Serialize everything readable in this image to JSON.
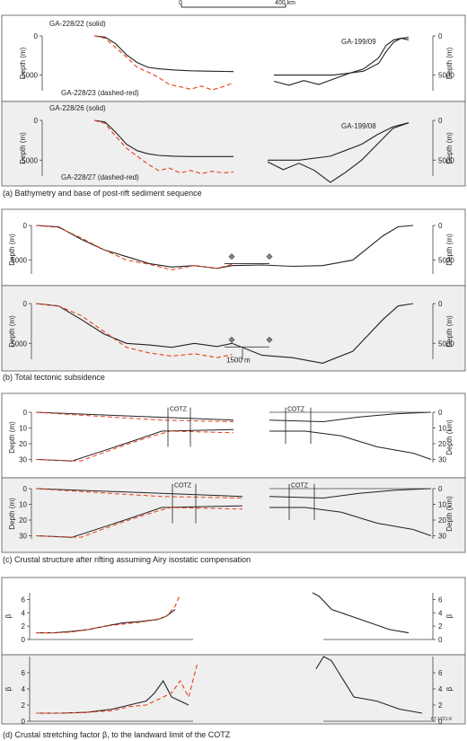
{
  "scale_bar": {
    "start": "0",
    "end": "400 km"
  },
  "colors": {
    "solid": "#222222",
    "dashed": "#e8401c",
    "panel_shade": "#efefef"
  },
  "captions": {
    "a": "(a) Bathymetry and base of post-rift sediment sequence",
    "b": "(b) Total tectonic subsidence",
    "c": "(c) Crustal structure after rifting assuming Airy isostatic compensation",
    "d": "(d) Crustal stretching factor β, to the landward limit of the COTZ"
  },
  "figure_id": "67-1721-9",
  "chart_data": [
    {
      "id": "a1",
      "type": "line",
      "title": "",
      "ylabel": "Depth (m)",
      "ylabel_right": "Depth (m)",
      "ylim": [
        0,
        7000
      ],
      "yticks": [
        0,
        5000
      ],
      "labels": [
        "GA-228/22 (solid)",
        "GA-228/23 (dashed-red)",
        "GA-199/09"
      ],
      "series": [
        {
          "name": "GA-228/22 (solid)",
          "style": "solid",
          "x": [
            0,
            20,
            40,
            60,
            80,
            100,
            120,
            150,
            180,
            210,
            260
          ],
          "y": [
            0,
            150,
            1000,
            2400,
            3400,
            4000,
            4200,
            4350,
            4450,
            4500,
            4550
          ]
        },
        {
          "name": "GA-228/23 (dashed-red)",
          "style": "dashed",
          "x": [
            0,
            20,
            40,
            60,
            80,
            100,
            120,
            140,
            160,
            180,
            200,
            220,
            240,
            260
          ],
          "y": [
            0,
            300,
            1500,
            2700,
            4000,
            4600,
            5300,
            6200,
            6500,
            6800,
            6400,
            6900,
            6500,
            6000
          ]
        },
        {
          "name": "GA-199/09",
          "style": "solid",
          "x": [
            0,
            20,
            40,
            60,
            80,
            100,
            120,
            140,
            150,
            160,
            170,
            180
          ],
          "y": [
            5800,
            6300,
            5700,
            6200,
            5500,
            4800,
            4200,
            2800,
            1200,
            500,
            300,
            200
          ]
        },
        {
          "name": "GA-199/09",
          "style": "solid",
          "x": [
            0,
            40,
            80,
            120,
            140,
            150,
            160,
            170,
            180
          ],
          "y": [
            5000,
            5000,
            5000,
            4500,
            3500,
            2000,
            800,
            300,
            500
          ]
        }
      ]
    },
    {
      "id": "a2",
      "type": "line",
      "title": "",
      "ylabel": "Depth (m)",
      "ylabel_right": "Depth (m)",
      "ylim": [
        0,
        7000
      ],
      "yticks": [
        0,
        5000
      ],
      "labels": [
        "GA-228/26 (solid)",
        "GA-228/27 (dashed-red)",
        "GA-199/08"
      ],
      "series": [
        {
          "name": "GA-228/26 (solid)",
          "style": "solid",
          "x": [
            0,
            20,
            40,
            60,
            80,
            100,
            120,
            150,
            180,
            210,
            260
          ],
          "y": [
            0,
            200,
            1500,
            3000,
            3800,
            4200,
            4400,
            4500,
            4550,
            4550,
            4550
          ]
        },
        {
          "name": "GA-228/27 (dashed-red)",
          "style": "dashed",
          "x": [
            0,
            20,
            40,
            60,
            80,
            100,
            120,
            140,
            160,
            180,
            200,
            220,
            240,
            260
          ],
          "y": [
            0,
            400,
            2000,
            3500,
            4500,
            5500,
            6300,
            6000,
            6600,
            6300,
            6700,
            6400,
            6600,
            6500
          ]
        },
        {
          "name": "GA-199/08",
          "style": "solid",
          "x": [
            0,
            20,
            40,
            60,
            80,
            100,
            120,
            140,
            160,
            180
          ],
          "y": [
            5200,
            6200,
            5400,
            6300,
            7800,
            6500,
            5000,
            3000,
            1000,
            300
          ]
        },
        {
          "name": "GA-199/08",
          "style": "solid",
          "x": [
            0,
            40,
            80,
            120,
            140,
            160,
            180
          ],
          "y": [
            5000,
            5000,
            4500,
            3000,
            1800,
            800,
            300
          ]
        }
      ]
    },
    {
      "id": "b1",
      "type": "line",
      "title": "",
      "ylabel": "Depth (m)",
      "ylabel_right": "Depth (m)",
      "ylim": [
        0,
        7000
      ],
      "yticks": [
        0,
        5000
      ],
      "series": [
        {
          "name": "solid",
          "style": "solid",
          "x": [
            0,
            30,
            60,
            90,
            120,
            150,
            180,
            210,
            240,
            260,
            300,
            340,
            380,
            420,
            460,
            480,
            500
          ],
          "y": [
            0,
            200,
            2000,
            3500,
            4500,
            5500,
            6000,
            5800,
            6200,
            5800,
            5700,
            5900,
            5800,
            5000,
            1500,
            200,
            0
          ]
        },
        {
          "name": "dashed",
          "style": "dashed",
          "x": [
            0,
            30,
            60,
            90,
            120,
            150,
            180,
            210,
            240,
            260
          ],
          "y": [
            0,
            300,
            1800,
            3500,
            5000,
            5600,
            6400,
            5800,
            6200,
            5600
          ]
        }
      ]
    },
    {
      "id": "b2",
      "type": "line",
      "title": "",
      "ylabel": "Depth (m)",
      "ylabel_right": "Depth (m)",
      "ylim": [
        0,
        7000
      ],
      "yticks": [
        0,
        5000
      ],
      "annotation": "1500 m",
      "series": [
        {
          "name": "solid",
          "style": "solid",
          "x": [
            0,
            30,
            60,
            90,
            120,
            150,
            180,
            210,
            240,
            260,
            300,
            340,
            380,
            420,
            460,
            480,
            500
          ],
          "y": [
            0,
            300,
            2000,
            3800,
            5000,
            5200,
            5500,
            5000,
            5400,
            5000,
            6500,
            6800,
            7500,
            6000,
            2000,
            300,
            0
          ]
        },
        {
          "name": "dashed",
          "style": "dashed",
          "x": [
            0,
            30,
            60,
            90,
            120,
            150,
            180,
            210,
            240,
            260
          ],
          "y": [
            0,
            300,
            1500,
            3500,
            5500,
            6200,
            6600,
            6300,
            6800,
            6400
          ]
        }
      ]
    },
    {
      "id": "c1",
      "type": "line",
      "title": "",
      "ylabel": "Depth (m)",
      "ylabel_right": "Depth (km)",
      "ylim": [
        0,
        32
      ],
      "yticks": [
        0,
        10,
        20,
        30
      ],
      "labels": [
        "COTZ",
        "COTZ"
      ]
    },
    {
      "id": "c2",
      "type": "line",
      "title": "",
      "ylabel": "Depth (m)",
      "ylabel_right": "Depth (km)",
      "ylim": [
        0,
        32
      ],
      "yticks": [
        0,
        10,
        20,
        30
      ],
      "labels": [
        "COTZ",
        "COTZ"
      ]
    },
    {
      "id": "d1",
      "type": "line",
      "title": "",
      "ylabel": "β",
      "ylim": [
        0,
        7
      ],
      "yticks": [
        0,
        2,
        4,
        6
      ],
      "series": [
        {
          "name": "solid",
          "style": "solid",
          "x": [
            0,
            20,
            40,
            60,
            80,
            100,
            120,
            140,
            150,
            160
          ],
          "y": [
            1,
            1,
            1.2,
            1.5,
            2,
            2.5,
            2.7,
            3,
            3.5,
            4.5
          ]
        },
        {
          "name": "dashed",
          "style": "dashed",
          "x": [
            0,
            20,
            40,
            60,
            80,
            100,
            120,
            140,
            150,
            160,
            165
          ],
          "y": [
            1,
            1,
            1.1,
            1.5,
            2,
            2.3,
            2.6,
            3,
            3.5,
            5,
            6.5
          ]
        },
        {
          "name": "right",
          "style": "solid",
          "x": [
            0,
            10,
            30,
            60,
            90,
            120,
            150
          ],
          "y": [
            7,
            6.5,
            4.5,
            3.5,
            2.5,
            1.5,
            1
          ]
        }
      ]
    },
    {
      "id": "d2",
      "type": "line",
      "title": "",
      "ylabel": "β",
      "ylim": [
        0,
        8
      ],
      "yticks": [
        0,
        2,
        4,
        6
      ],
      "series": [
        {
          "name": "solid",
          "style": "solid",
          "x": [
            0,
            30,
            60,
            90,
            110,
            130,
            140,
            150,
            160,
            170,
            180
          ],
          "y": [
            1,
            1,
            1.1,
            1.5,
            2,
            2.5,
            3.5,
            5,
            3,
            2.5,
            2
          ]
        },
        {
          "name": "dashed",
          "style": "dashed",
          "x": [
            0,
            30,
            60,
            90,
            110,
            130,
            140,
            150,
            160,
            170,
            180,
            190
          ],
          "y": [
            1,
            1,
            1.1,
            1.3,
            1.8,
            2,
            2.5,
            3,
            3.5,
            5,
            3,
            7
          ]
        },
        {
          "name": "right",
          "style": "solid",
          "x": [
            0,
            10,
            20,
            30,
            50,
            80,
            110,
            140
          ],
          "y": [
            6.5,
            8,
            7.5,
            6,
            3,
            2.5,
            1.5,
            1
          ]
        }
      ]
    }
  ]
}
